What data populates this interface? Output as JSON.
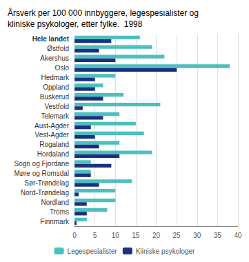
{
  "chart_data": {
    "type": "bar",
    "orientation": "horizontal",
    "title": "Årsverk per 100 000 innbyggere, legespesialister og\nkliniske psykologer, etter fylke.  1998",
    "categories": [
      "Hele landet",
      "Østfold",
      "Akershus",
      "Oslo",
      "Hedmark",
      "Oppland",
      "Buskerud",
      "Vestfold",
      "Telemark",
      "Aust-Agder",
      "Vest-Agder",
      "Rogaland",
      "Hordaland",
      "Sogn og Fjordane",
      "Møre og Romsdal",
      "Sør-Trøndelag",
      "Nord-Trøndelag",
      "Nordland",
      "Troms",
      "Finnmark"
    ],
    "series": [
      {
        "name": "Legespesialister",
        "color": "#4DBFBF",
        "values": [
          16,
          19,
          22,
          38,
          10,
          7,
          12,
          21,
          11,
          15,
          17,
          11,
          19,
          4,
          4,
          14,
          10,
          10,
          8,
          3
        ]
      },
      {
        "name": "Kliniske psykologer",
        "color": "#1A3080",
        "values": [
          9,
          6,
          10,
          25,
          5,
          5,
          7,
          2,
          7,
          4,
          5,
          6,
          11,
          9,
          4,
          6,
          1,
          3,
          3,
          0.5
        ]
      }
    ],
    "xlim": [
      0,
      40
    ],
    "xticks": [
      0,
      5,
      10,
      15,
      20,
      25,
      30,
      35,
      40
    ],
    "grid": true,
    "legend": "bottom"
  }
}
